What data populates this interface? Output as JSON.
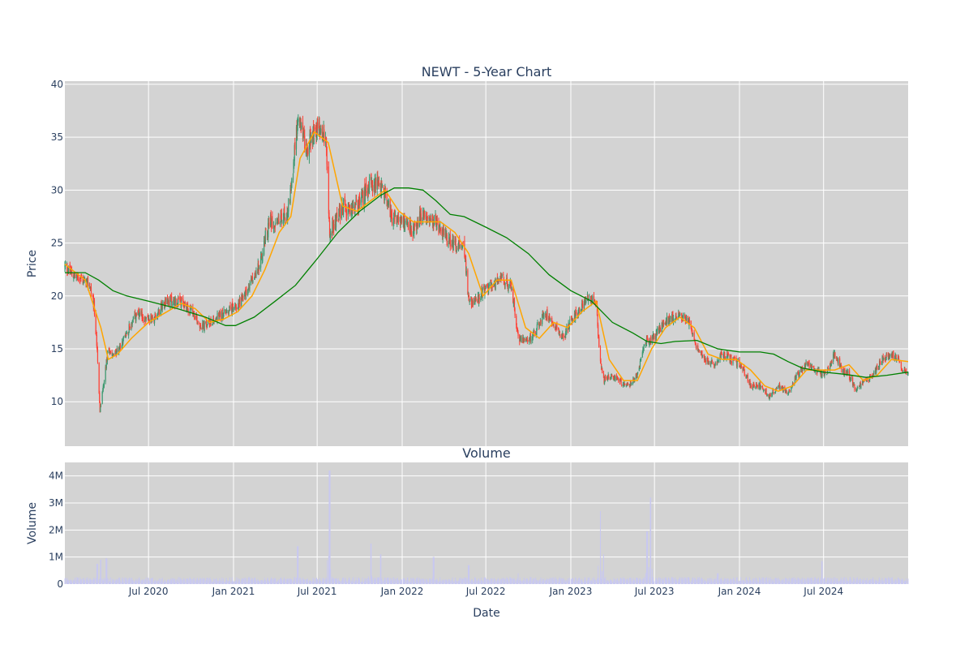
{
  "chart_data": [
    {
      "type": "candlestick",
      "title": "NEWT - 5-Year Chart",
      "xlabel": "",
      "ylabel": "Price",
      "x_range": [
        "2020-01-02",
        "2024-12-31"
      ],
      "ylim": [
        5.8,
        40.3
      ],
      "y_ticks": [
        10,
        15,
        20,
        25,
        30,
        35,
        40
      ],
      "x_ticks": [
        {
          "date": "2020-07-01",
          "label": "Jul 2020"
        },
        {
          "date": "2021-01-01",
          "label": "Jan 2021"
        },
        {
          "date": "2021-07-01",
          "label": "Jul 2021"
        },
        {
          "date": "2022-01-01",
          "label": "Jan 2022"
        },
        {
          "date": "2022-07-01",
          "label": "Jul 2022"
        },
        {
          "date": "2023-01-01",
          "label": "Jan 2023"
        },
        {
          "date": "2023-07-01",
          "label": "Jul 2023"
        },
        {
          "date": "2024-01-01",
          "label": "Jan 2024"
        },
        {
          "date": "2024-07-01",
          "label": "Jul 2024"
        }
      ],
      "grid": true,
      "colors": {
        "up": "#3d9970",
        "down": "#ff4136",
        "ma_short": "#ffa500",
        "ma_long": "#008000",
        "plot_bg": "#d3d3d3"
      },
      "approx_close_path": [
        [
          "2020-01-02",
          22.8
        ],
        [
          "2020-01-20",
          22.0
        ],
        [
          "2020-02-10",
          21.5
        ],
        [
          "2020-02-25",
          21.0
        ],
        [
          "2020-03-05",
          19.0
        ],
        [
          "2020-03-12",
          15.0
        ],
        [
          "2020-03-18",
          9.0
        ],
        [
          "2020-03-25",
          11.5
        ],
        [
          "2020-04-05",
          15.0
        ],
        [
          "2020-04-20",
          14.5
        ],
        [
          "2020-05-05",
          15.5
        ],
        [
          "2020-05-20",
          17.0
        ],
        [
          "2020-06-05",
          18.2
        ],
        [
          "2020-06-25",
          17.8
        ],
        [
          "2020-07-15",
          18.0
        ],
        [
          "2020-08-05",
          19.5
        ],
        [
          "2020-08-25",
          19.5
        ],
        [
          "2020-09-15",
          19.2
        ],
        [
          "2020-10-05",
          18.5
        ],
        [
          "2020-10-25",
          17.0
        ],
        [
          "2020-11-10",
          17.5
        ],
        [
          "2020-11-25",
          18.0
        ],
        [
          "2020-12-15",
          18.5
        ],
        [
          "2021-01-05",
          19.0
        ],
        [
          "2021-01-25",
          20.0
        ],
        [
          "2021-02-10",
          21.5
        ],
        [
          "2021-02-28",
          23.0
        ],
        [
          "2021-03-10",
          25.5
        ],
        [
          "2021-03-20",
          27.0
        ],
        [
          "2021-04-10",
          27.0
        ],
        [
          "2021-04-28",
          28.0
        ],
        [
          "2021-05-10",
          32.0
        ],
        [
          "2021-05-20",
          37.0
        ],
        [
          "2021-05-30",
          35.0
        ],
        [
          "2021-06-10",
          34.0
        ],
        [
          "2021-06-25",
          35.5
        ],
        [
          "2021-07-05",
          36.0
        ],
        [
          "2021-07-20",
          35.0
        ],
        [
          "2021-07-28",
          26.0
        ],
        [
          "2021-08-10",
          27.0
        ],
        [
          "2021-08-25",
          28.5
        ],
        [
          "2021-09-10",
          28.0
        ],
        [
          "2021-09-25",
          28.5
        ],
        [
          "2021-10-10",
          29.5
        ],
        [
          "2021-10-25",
          30.5
        ],
        [
          "2021-11-10",
          30.5
        ],
        [
          "2021-11-25",
          29.5
        ],
        [
          "2021-12-10",
          27.5
        ],
        [
          "2021-12-25",
          27.0
        ],
        [
          "2022-01-10",
          27.0
        ],
        [
          "2022-01-25",
          26.0
        ],
        [
          "2022-02-10",
          27.5
        ],
        [
          "2022-02-28",
          27.5
        ],
        [
          "2022-03-15",
          27.0
        ],
        [
          "2022-04-05",
          25.5
        ],
        [
          "2022-04-25",
          25.0
        ],
        [
          "2022-05-15",
          24.5
        ],
        [
          "2022-05-25",
          19.5
        ],
        [
          "2022-06-10",
          19.5
        ],
        [
          "2022-06-25",
          20.5
        ],
        [
          "2022-07-15",
          21.0
        ],
        [
          "2022-08-05",
          21.5
        ],
        [
          "2022-08-25",
          21.0
        ],
        [
          "2022-09-10",
          16.0
        ],
        [
          "2022-09-25",
          15.5
        ],
        [
          "2022-10-15",
          16.5
        ],
        [
          "2022-11-05",
          18.5
        ],
        [
          "2022-11-25",
          17.5
        ],
        [
          "2022-12-15",
          16.0
        ],
        [
          "2023-01-05",
          18.0
        ],
        [
          "2023-01-25",
          19.0
        ],
        [
          "2023-02-10",
          20.0
        ],
        [
          "2023-02-25",
          19.0
        ],
        [
          "2023-03-05",
          14.0
        ],
        [
          "2023-03-12",
          12.0
        ],
        [
          "2023-03-25",
          12.5
        ],
        [
          "2023-04-15",
          12.0
        ],
        [
          "2023-05-05",
          11.5
        ],
        [
          "2023-05-25",
          12.5
        ],
        [
          "2023-06-10",
          15.5
        ],
        [
          "2023-06-25",
          16.0
        ],
        [
          "2023-07-15",
          17.0
        ],
        [
          "2023-08-05",
          18.0
        ],
        [
          "2023-08-25",
          18.0
        ],
        [
          "2023-09-15",
          17.5
        ],
        [
          "2023-10-01",
          15.0
        ],
        [
          "2023-10-20",
          14.0
        ],
        [
          "2023-11-10",
          13.5
        ],
        [
          "2023-11-25",
          14.5
        ],
        [
          "2023-12-15",
          14.0
        ],
        [
          "2024-01-05",
          13.5
        ],
        [
          "2024-01-25",
          11.5
        ],
        [
          "2024-02-15",
          11.5
        ],
        [
          "2024-03-05",
          10.5
        ],
        [
          "2024-03-25",
          11.5
        ],
        [
          "2024-04-15",
          11.0
        ],
        [
          "2024-05-05",
          12.5
        ],
        [
          "2024-05-25",
          13.5
        ],
        [
          "2024-06-15",
          13.0
        ],
        [
          "2024-07-05",
          12.5
        ],
        [
          "2024-07-25",
          14.5
        ],
        [
          "2024-08-10",
          13.0
        ],
        [
          "2024-08-25",
          12.5
        ],
        [
          "2024-09-10",
          11.0
        ],
        [
          "2024-09-25",
          12.0
        ],
        [
          "2024-10-15",
          12.5
        ],
        [
          "2024-11-05",
          14.0
        ],
        [
          "2024-11-25",
          14.5
        ],
        [
          "2024-12-10",
          14.0
        ],
        [
          "2024-12-20",
          13.0
        ],
        [
          "2024-12-31",
          12.8
        ]
      ],
      "series": [
        {
          "type": "line",
          "values": [
            [
              "2020-01-02",
              23.0
            ],
            [
              "2020-02-15",
              21.5
            ],
            [
              "2020-03-20",
              17.0
            ],
            [
              "2020-04-05",
              14.0
            ],
            [
              "2020-04-25",
              14.5
            ],
            [
              "2020-05-25",
              16.0
            ],
            [
              "2020-07-01",
              17.5
            ],
            [
              "2020-08-10",
              18.5
            ],
            [
              "2020-09-10",
              19.3
            ],
            [
              "2020-10-10",
              18.8
            ],
            [
              "2020-11-10",
              17.5
            ],
            [
              "2020-12-10",
              17.8
            ],
            [
              "2021-01-10",
              18.5
            ],
            [
              "2021-02-10",
              20.0
            ],
            [
              "2021-03-10",
              22.5
            ],
            [
              "2021-04-10",
              26.0
            ],
            [
              "2021-05-05",
              27.5
            ],
            [
              "2021-05-25",
              33.0
            ],
            [
              "2021-06-25",
              35.5
            ],
            [
              "2021-07-25",
              34.5
            ],
            [
              "2021-08-25",
              28.5
            ],
            [
              "2021-09-25",
              28.0
            ],
            [
              "2021-10-25",
              29.0
            ],
            [
              "2021-11-25",
              30.0
            ],
            [
              "2021-12-25",
              28.0
            ],
            [
              "2022-01-25",
              27.0
            ],
            [
              "2022-02-25",
              27.0
            ],
            [
              "2022-03-25",
              27.0
            ],
            [
              "2022-04-25",
              26.0
            ],
            [
              "2022-05-25",
              24.0
            ],
            [
              "2022-06-25",
              20.0
            ],
            [
              "2022-07-25",
              21.5
            ],
            [
              "2022-08-25",
              21.5
            ],
            [
              "2022-09-25",
              17.0
            ],
            [
              "2022-10-25",
              16.0
            ],
            [
              "2022-11-25",
              17.5
            ],
            [
              "2022-12-25",
              17.0
            ],
            [
              "2023-01-25",
              18.5
            ],
            [
              "2023-02-25",
              19.5
            ],
            [
              "2023-03-25",
              14.0
            ],
            [
              "2023-04-25",
              12.0
            ],
            [
              "2023-05-25",
              12.0
            ],
            [
              "2023-06-25",
              15.0
            ],
            [
              "2023-07-25",
              17.0
            ],
            [
              "2023-08-25",
              18.0
            ],
            [
              "2023-09-25",
              17.0
            ],
            [
              "2023-10-25",
              14.5
            ],
            [
              "2023-11-25",
              14.0
            ],
            [
              "2023-12-25",
              14.0
            ],
            [
              "2024-01-25",
              13.0
            ],
            [
              "2024-02-25",
              11.5
            ],
            [
              "2024-03-25",
              11.0
            ],
            [
              "2024-04-25",
              11.5
            ],
            [
              "2024-05-25",
              13.0
            ],
            [
              "2024-06-25",
              13.0
            ],
            [
              "2024-07-25",
              13.0
            ],
            [
              "2024-08-25",
              13.5
            ],
            [
              "2024-09-25",
              12.0
            ],
            [
              "2024-10-25",
              12.5
            ],
            [
              "2024-11-25",
              14.0
            ],
            [
              "2024-12-31",
              13.8
            ]
          ]
        },
        {
          "type": "line",
          "values": [
            [
              "2020-01-02",
              22.2
            ],
            [
              "2020-02-15",
              22.2
            ],
            [
              "2020-03-15",
              21.5
            ],
            [
              "2020-04-15",
              20.5
            ],
            [
              "2020-05-15",
              20.0
            ],
            [
              "2020-07-01",
              19.5
            ],
            [
              "2020-09-01",
              18.8
            ],
            [
              "2020-11-01",
              18.0
            ],
            [
              "2020-12-15",
              17.2
            ],
            [
              "2021-01-05",
              17.2
            ],
            [
              "2021-02-15",
              18.0
            ],
            [
              "2021-04-01",
              19.5
            ],
            [
              "2021-05-15",
              21.0
            ],
            [
              "2021-07-01",
              23.5
            ],
            [
              "2021-08-15",
              26.0
            ],
            [
              "2021-10-01",
              28.0
            ],
            [
              "2021-11-15",
              29.5
            ],
            [
              "2021-12-15",
              30.2
            ],
            [
              "2022-01-15",
              30.2
            ],
            [
              "2022-02-15",
              30.0
            ],
            [
              "2022-03-15",
              29.0
            ],
            [
              "2022-04-15",
              27.7
            ],
            [
              "2022-05-15",
              27.5
            ],
            [
              "2022-07-01",
              26.5
            ],
            [
              "2022-08-15",
              25.5
            ],
            [
              "2022-10-01",
              24.0
            ],
            [
              "2022-11-15",
              22.0
            ],
            [
              "2023-01-01",
              20.5
            ],
            [
              "2023-02-15",
              19.5
            ],
            [
              "2023-04-01",
              17.5
            ],
            [
              "2023-05-15",
              16.5
            ],
            [
              "2023-06-15",
              15.7
            ],
            [
              "2023-07-15",
              15.5
            ],
            [
              "2023-08-15",
              15.7
            ],
            [
              "2023-10-01",
              15.8
            ],
            [
              "2023-11-15",
              15.0
            ],
            [
              "2024-01-01",
              14.7
            ],
            [
              "2024-02-15",
              14.7
            ],
            [
              "2024-03-15",
              14.5
            ],
            [
              "2024-04-15",
              13.8
            ],
            [
              "2024-05-15",
              13.2
            ],
            [
              "2024-07-01",
              12.8
            ],
            [
              "2024-08-15",
              12.6
            ],
            [
              "2024-10-01",
              12.3
            ],
            [
              "2024-11-15",
              12.5
            ],
            [
              "2024-12-31",
              12.8
            ]
          ]
        }
      ]
    },
    {
      "type": "bar",
      "title": "Volume",
      "xlabel": "Date",
      "ylabel": "Volume",
      "ylim": [
        0,
        4500000
      ],
      "y_ticks": [
        0,
        1000000,
        2000000,
        3000000,
        4000000
      ],
      "y_tick_labels": [
        "0",
        "1M",
        "2M",
        "3M",
        "4M"
      ],
      "bar_color": "#c8c8f0",
      "volume_spikes": [
        [
          "2020-03-12",
          750000
        ],
        [
          "2020-03-20",
          900000
        ],
        [
          "2020-04-01",
          950000
        ],
        [
          "2021-05-20",
          1400000
        ],
        [
          "2021-07-28",
          4200000
        ],
        [
          "2021-10-25",
          1500000
        ],
        [
          "2021-11-15",
          1100000
        ],
        [
          "2022-03-10",
          1000000
        ],
        [
          "2022-05-25",
          700000
        ],
        [
          "2022-09-10",
          400000
        ],
        [
          "2023-03-05",
          2700000
        ],
        [
          "2023-03-12",
          1100000
        ],
        [
          "2023-06-15",
          1950000
        ],
        [
          "2023-06-23",
          3200000
        ],
        [
          "2023-11-15",
          400000
        ],
        [
          "2024-06-28",
          850000
        ]
      ]
    }
  ]
}
